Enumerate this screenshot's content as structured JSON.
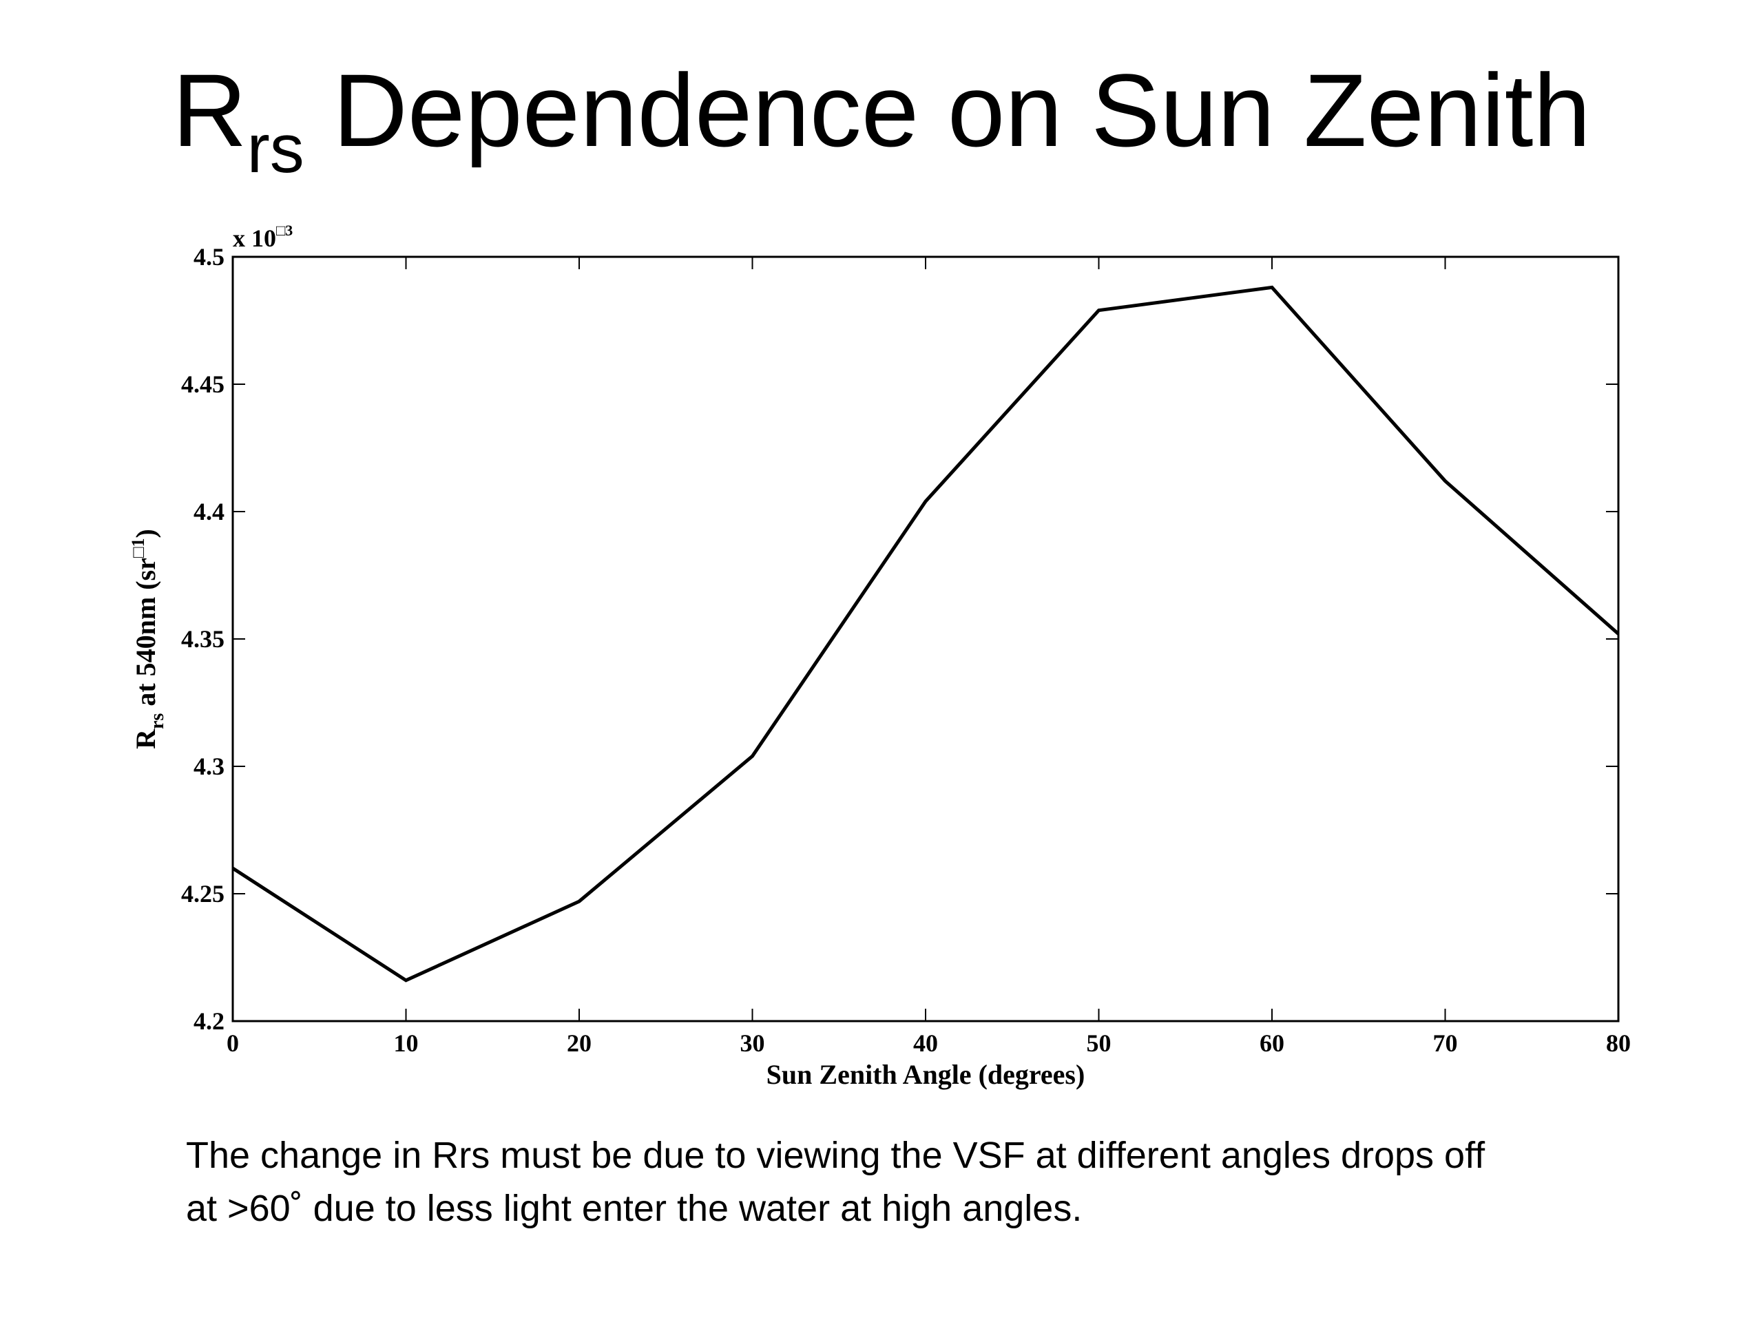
{
  "slide": {
    "title_main": "R",
    "title_sub": "rs",
    "title_rest": " Dependence on Sun Zenith",
    "caption_line1": "The change in Rrs must be due to viewing the VSF at different angles drops off",
    "caption_line2": "at >60˚ due to less light enter the water at high angles."
  },
  "chart_data": {
    "type": "line",
    "title": "",
    "xlabel": "Sun Zenith Angle (degrees)",
    "ylabel_main": "R",
    "ylabel_sub": "rs",
    "ylabel_rest": " at 540nm (sr",
    "ylabel_sup": "□1",
    "ylabel_close": ")",
    "exponent_base": "x 10",
    "exponent_power": "□3",
    "xlim": [
      0,
      80
    ],
    "ylim": [
      4.2,
      4.5
    ],
    "xticks": [
      0,
      10,
      20,
      30,
      40,
      50,
      60,
      70,
      80
    ],
    "yticks": [
      4.2,
      4.25,
      4.3,
      4.35,
      4.4,
      4.45,
      4.5
    ],
    "ytick_labels": [
      "4.2",
      "4.25",
      "4.3",
      "4.35",
      "4.4",
      "4.45",
      "4.5"
    ],
    "grid": false,
    "line_color": "#000000",
    "series": [
      {
        "x": [
          0,
          10,
          20,
          30,
          40,
          50,
          60,
          70,
          80
        ],
        "values": [
          4.26,
          4.216,
          4.247,
          4.304,
          4.404,
          4.479,
          4.488,
          4.412,
          4.352
        ]
      }
    ]
  }
}
